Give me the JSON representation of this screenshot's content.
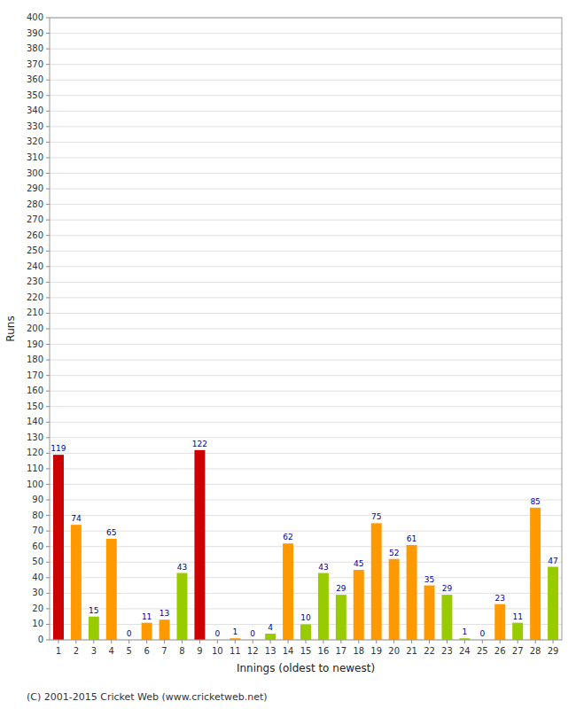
{
  "chart_data": {
    "type": "bar",
    "xlabel": "Innings (oldest to newest)",
    "ylabel": "Runs",
    "annotations": [
      "(C) 2001-2015 Cricket Web (www.cricketweb.net)"
    ],
    "categories": [
      "1",
      "2",
      "3",
      "4",
      "5",
      "6",
      "7",
      "8",
      "9",
      "10",
      "11",
      "12",
      "13",
      "14",
      "15",
      "16",
      "17",
      "18",
      "19",
      "20",
      "21",
      "22",
      "23",
      "24",
      "25",
      "26",
      "27",
      "28",
      "29"
    ],
    "values": [
      119,
      74,
      15,
      65,
      0,
      11,
      13,
      43,
      122,
      0,
      1,
      0,
      4,
      62,
      10,
      43,
      29,
      45,
      75,
      52,
      61,
      35,
      29,
      1,
      0,
      23,
      11,
      85,
      47
    ],
    "colors": [
      "#cc0000",
      "#ff9900",
      "#99cc00",
      "#ff9900",
      "#99cc00",
      "#ff9900",
      "#ff9900",
      "#99cc00",
      "#cc0000",
      "#99cc00",
      "#ff9900",
      "#99cc00",
      "#99cc00",
      "#ff9900",
      "#99cc00",
      "#99cc00",
      "#99cc00",
      "#ff9900",
      "#ff9900",
      "#ff9900",
      "#ff9900",
      "#ff9900",
      "#99cc00",
      "#99cc00",
      "#99cc00",
      "#ff9900",
      "#99cc00",
      "#ff9900",
      "#99cc00"
    ],
    "ylim": [
      0,
      400
    ],
    "yticks": [
      0,
      10,
      20,
      30,
      40,
      50,
      60,
      70,
      80,
      90,
      100,
      110,
      120,
      130,
      140,
      150,
      160,
      170,
      180,
      190,
      200,
      210,
      220,
      230,
      240,
      250,
      260,
      270,
      280,
      290,
      300,
      310,
      320,
      330,
      340,
      350,
      360,
      370,
      380,
      390,
      400
    ],
    "grid": true,
    "data_labels": true
  }
}
